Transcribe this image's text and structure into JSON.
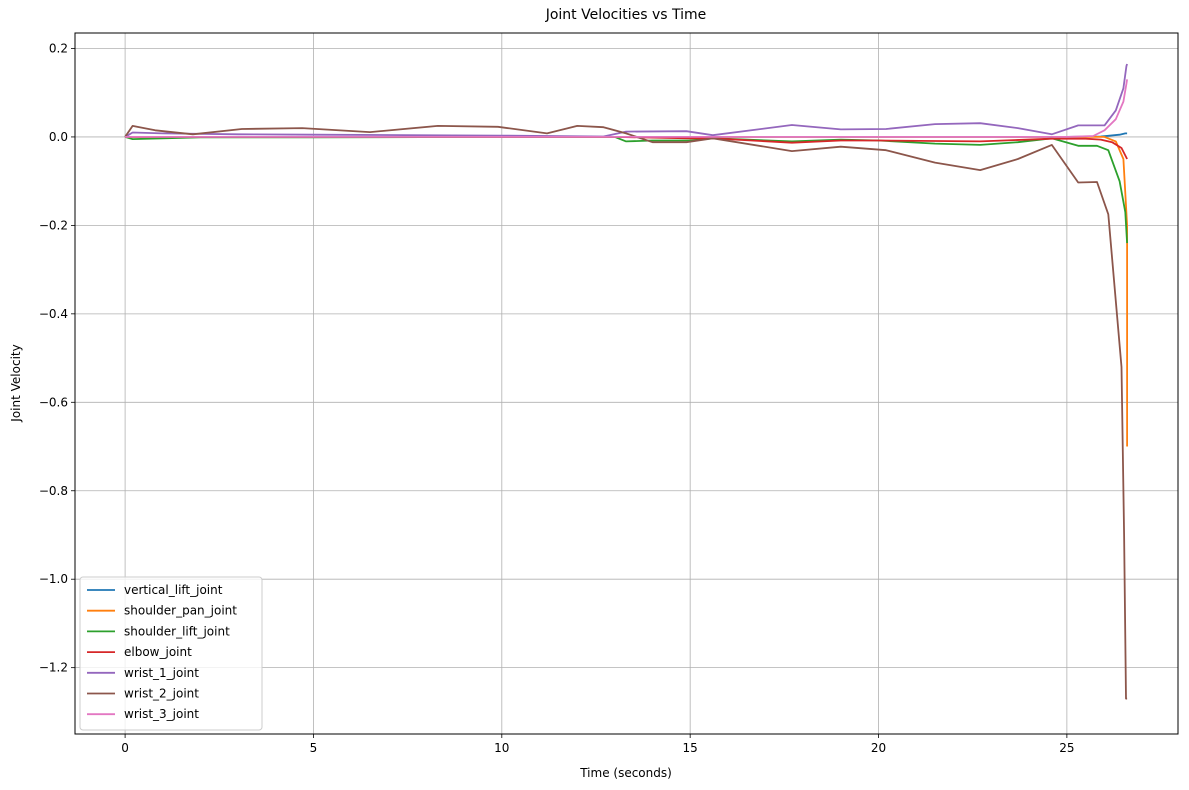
{
  "chart_data": {
    "type": "line",
    "title": "Joint Velocities vs Time",
    "xlabel": "Time (seconds)",
    "ylabel": "Joint Velocity",
    "xlim": [
      -1.33,
      27.95
    ],
    "ylim": [
      -1.35,
      0.235
    ],
    "xticks": [
      0,
      5,
      10,
      15,
      20,
      25
    ],
    "xtick_labels": [
      "0",
      "5",
      "10",
      "15",
      "20",
      "25"
    ],
    "yticks": [
      0.2,
      0.0,
      -0.2,
      -0.4,
      -0.6,
      -0.8,
      -1.0,
      -1.2
    ],
    "ytick_labels": [
      "0.2",
      "0.0",
      "−0.2",
      "−0.4",
      "−0.6",
      "−0.8",
      "−1.0",
      "−1.2"
    ],
    "grid": true,
    "legend_position": "lower-left",
    "series": [
      {
        "name": "vertical_lift_joint",
        "color": "#1f77b4",
        "x": [
          0,
          5,
          10,
          15,
          20,
          25,
          25.9,
          26.4,
          26.55,
          26.6
        ],
        "y": [
          0,
          0,
          0,
          0,
          0,
          0,
          0.001,
          0.005,
          0.008,
          0.008
        ]
      },
      {
        "name": "shoulder_pan_joint",
        "color": "#ff7f0e",
        "x": [
          0,
          5,
          10,
          15,
          20,
          25,
          26.0,
          26.3,
          26.5,
          26.6,
          26.6
        ],
        "y": [
          0,
          0,
          0,
          0,
          0,
          0,
          0,
          -0.01,
          -0.05,
          -0.2,
          -0.7
        ]
      },
      {
        "name": "shoulder_lift_joint",
        "color": "#2ca02c",
        "x": [
          0,
          0.2,
          1.0,
          2.0,
          5.0,
          10.0,
          13.0,
          13.3,
          14.0,
          15.0,
          15.6,
          17.7,
          19.0,
          20.0,
          21.5,
          22.7,
          23.7,
          24.6,
          25.3,
          25.8,
          26.1,
          26.4,
          26.55,
          26.6
        ],
        "y": [
          0,
          -0.005,
          -0.003,
          -0.001,
          -0.001,
          0,
          0,
          -0.01,
          -0.008,
          -0.008,
          -0.003,
          -0.01,
          -0.006,
          -0.008,
          -0.015,
          -0.018,
          -0.012,
          -0.003,
          -0.02,
          -0.02,
          -0.03,
          -0.1,
          -0.17,
          -0.24
        ]
      },
      {
        "name": "elbow_joint",
        "color": "#d62728",
        "x": [
          0,
          5,
          10,
          13.0,
          15.0,
          15.6,
          17.7,
          19.0,
          20.0,
          22.7,
          24.6,
          25.5,
          25.9,
          26.2,
          26.45,
          26.6
        ],
        "y": [
          0,
          0,
          0,
          0,
          -0.003,
          -0.003,
          -0.013,
          -0.008,
          -0.008,
          -0.01,
          -0.004,
          -0.004,
          -0.006,
          -0.012,
          -0.025,
          -0.05
        ]
      },
      {
        "name": "wrist_1_joint",
        "color": "#9467bd",
        "x": [
          0,
          0.2,
          1.0,
          3.0,
          5.0,
          10.0,
          12.7,
          13.3,
          14.9,
          15.6,
          17.7,
          19.0,
          20.2,
          21.5,
          22.7,
          23.7,
          24.6,
          25.3,
          26.0,
          26.3,
          26.5,
          26.58,
          26.6
        ],
        "y": [
          0,
          0.01,
          0.008,
          0.006,
          0.005,
          0.003,
          0.001,
          0.012,
          0.013,
          0.004,
          0.027,
          0.017,
          0.018,
          0.029,
          0.031,
          0.02,
          0.006,
          0.026,
          0.026,
          0.06,
          0.11,
          0.16,
          0.165
        ]
      },
      {
        "name": "wrist_2_joint",
        "color": "#8c564b",
        "x": [
          0,
          0.2,
          0.8,
          1.8,
          3.1,
          4.7,
          6.5,
          8.3,
          9.9,
          11.2,
          12.0,
          12.7,
          13.3,
          14.0,
          14.9,
          15.6,
          17.7,
          19.0,
          20.2,
          21.5,
          22.7,
          23.7,
          24.6,
          25.3,
          25.8,
          26.1,
          26.45,
          26.52,
          26.57,
          26.6
        ],
        "y": [
          0,
          0.025,
          0.015,
          0.006,
          0.018,
          0.02,
          0.011,
          0.025,
          0.023,
          0.008,
          0.025,
          0.022,
          0.008,
          -0.012,
          -0.012,
          -0.003,
          -0.032,
          -0.022,
          -0.03,
          -0.058,
          -0.075,
          -0.05,
          -0.018,
          -0.103,
          -0.102,
          -0.175,
          -0.52,
          -0.9,
          -1.27,
          -1.27
        ]
      },
      {
        "name": "wrist_3_joint",
        "color": "#e377c2",
        "x": [
          0,
          5,
          10,
          15,
          20,
          25,
          25.7,
          26.0,
          26.3,
          26.5,
          26.58,
          26.6
        ],
        "y": [
          0,
          0,
          0,
          0,
          0,
          0,
          0.002,
          0.015,
          0.04,
          0.08,
          0.12,
          0.13
        ]
      }
    ]
  }
}
